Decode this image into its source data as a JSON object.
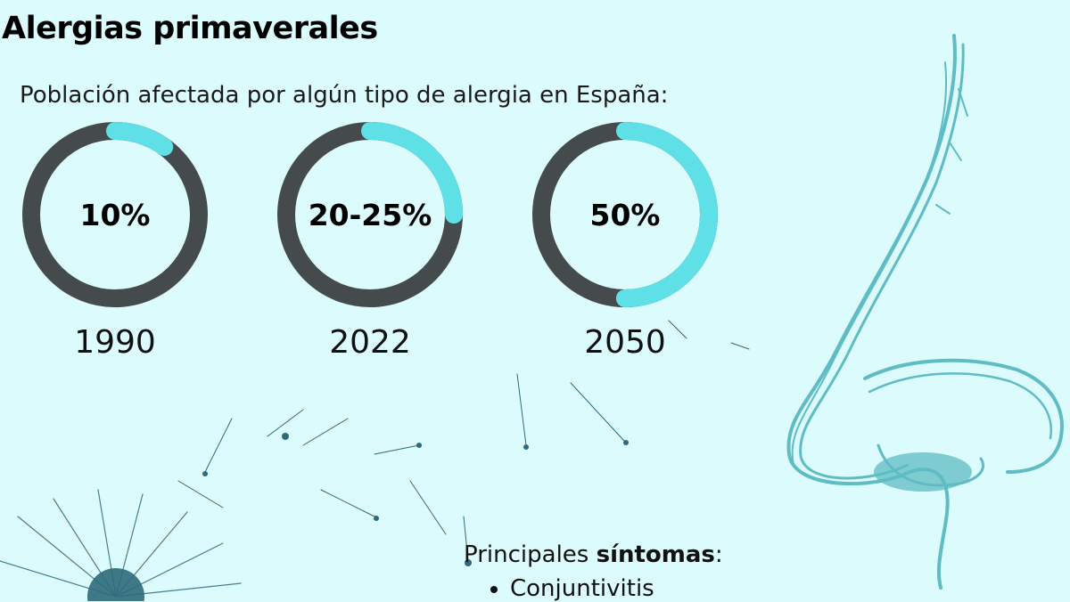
{
  "title": "Alergias primaverales",
  "subtitle": "Población afectada por algún tipo de alergia en España:",
  "stats": [
    {
      "value_label": "10%",
      "year": "1990",
      "fraction": 0.1
    },
    {
      "value_label": "20-25%",
      "year": "2022",
      "fraction": 0.25
    },
    {
      "value_label": "50%",
      "year": "2050",
      "fraction": 0.5
    }
  ],
  "symptoms": {
    "heading_prefix": "Principales ",
    "heading_bold": "síntomas",
    "heading_suffix": ":",
    "items": [
      "Conjuntivitis"
    ]
  },
  "colors": {
    "background": "#dcfbfc",
    "ring_track": "#454a4d",
    "ring_fill": "#5fdfe6",
    "nose": "#5fbcc4",
    "dandelion": "#2e6a7a"
  },
  "decorations": [
    "nose-illustration",
    "dandelion-seeds-illustration"
  ]
}
